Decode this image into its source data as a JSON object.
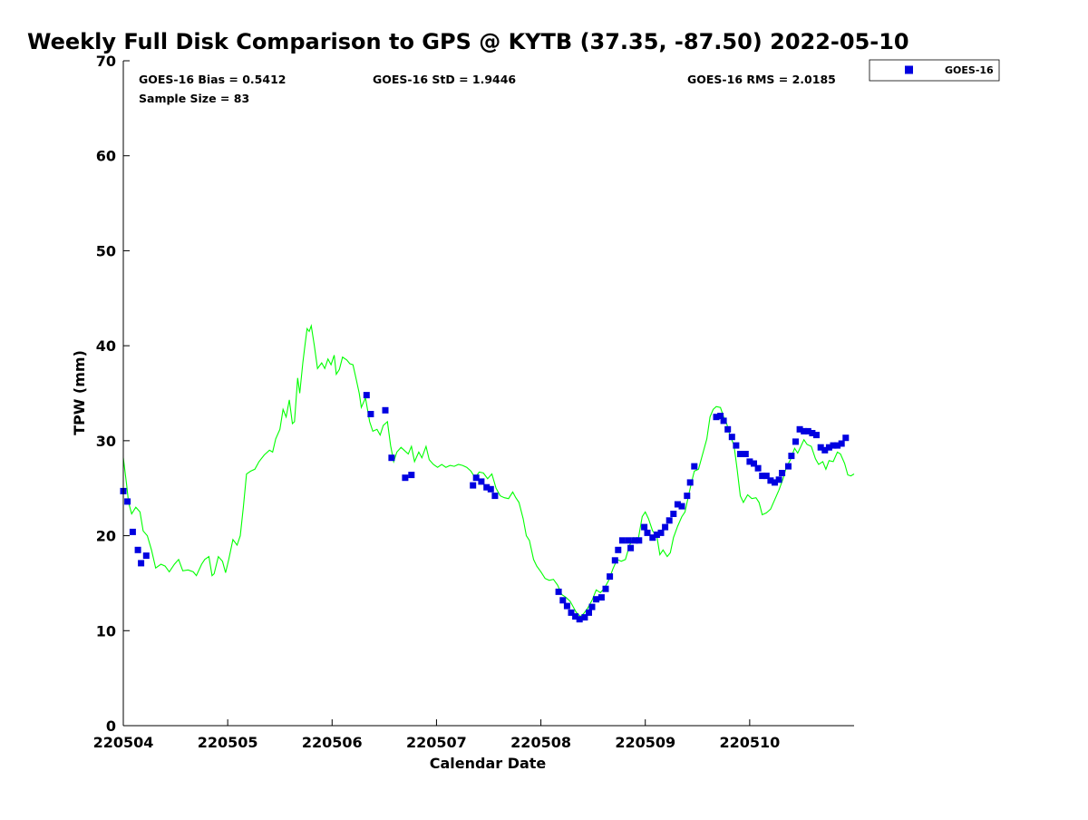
{
  "chart_data": {
    "type": "scatter",
    "title": "Weekly Full Disk Comparison to GPS @ KYTB (37.35, -87.50) 2022-05-10",
    "xlabel": "Calendar Date",
    "ylabel": "TPW (mm)",
    "ylim": [
      0,
      70
    ],
    "yticks": [
      0,
      10,
      20,
      30,
      40,
      50,
      60,
      70
    ],
    "xticks": [
      "220504",
      "220505",
      "220506",
      "220507",
      "220508",
      "220509",
      "220510"
    ],
    "xlim": [
      0,
      7
    ],
    "stats": {
      "bias": "GOES-16 Bias = 0.5412",
      "std": "GOES-16 StD = 1.9446",
      "rms": "GOES-16 RMS = 2.0185",
      "sample": "Sample Size = 83"
    },
    "legend": {
      "placement": "outside-top-right",
      "entries": [
        "GOES-16"
      ]
    },
    "colors": {
      "goes": "#0000e0",
      "gps": "#00ff00"
    },
    "series": [
      {
        "name": "GOES-16",
        "kind": "scatter",
        "points": [
          [
            0.0,
            24.7
          ],
          [
            0.04,
            23.6
          ],
          [
            0.09,
            20.4
          ],
          [
            0.14,
            18.5
          ],
          [
            0.17,
            17.1
          ],
          [
            0.22,
            17.9
          ],
          [
            2.33,
            34.8
          ],
          [
            2.37,
            32.8
          ],
          [
            2.51,
            33.2
          ],
          [
            2.57,
            28.2
          ],
          [
            2.7,
            26.1
          ],
          [
            2.76,
            26.4
          ],
          [
            3.35,
            25.3
          ],
          [
            3.38,
            26.1
          ],
          [
            3.43,
            25.7
          ],
          [
            3.48,
            25.1
          ],
          [
            3.52,
            24.9
          ],
          [
            3.56,
            24.2
          ],
          [
            4.17,
            14.1
          ],
          [
            4.21,
            13.2
          ],
          [
            4.25,
            12.6
          ],
          [
            4.29,
            11.9
          ],
          [
            4.33,
            11.5
          ],
          [
            4.37,
            11.2
          ],
          [
            4.42,
            11.4
          ],
          [
            4.46,
            11.9
          ],
          [
            4.49,
            12.5
          ],
          [
            4.53,
            13.3
          ],
          [
            4.58,
            13.5
          ],
          [
            4.62,
            14.4
          ],
          [
            4.66,
            15.7
          ],
          [
            4.71,
            17.4
          ],
          [
            4.74,
            18.5
          ],
          [
            4.78,
            19.5
          ],
          [
            4.84,
            19.5
          ],
          [
            4.86,
            18.7
          ],
          [
            4.9,
            19.5
          ],
          [
            4.94,
            19.5
          ],
          [
            4.99,
            20.9
          ],
          [
            5.02,
            20.3
          ],
          [
            5.07,
            19.8
          ],
          [
            5.11,
            20.1
          ],
          [
            5.15,
            20.3
          ],
          [
            5.19,
            20.9
          ],
          [
            5.23,
            21.6
          ],
          [
            5.27,
            22.3
          ],
          [
            5.31,
            23.3
          ],
          [
            5.35,
            23.1
          ],
          [
            5.4,
            24.2
          ],
          [
            5.43,
            25.6
          ],
          [
            5.47,
            27.3
          ],
          [
            5.68,
            32.5
          ],
          [
            5.72,
            32.6
          ],
          [
            5.75,
            32.1
          ],
          [
            5.79,
            31.2
          ],
          [
            5.83,
            30.4
          ],
          [
            5.87,
            29.5
          ],
          [
            5.91,
            28.6
          ],
          [
            5.96,
            28.6
          ],
          [
            6.0,
            27.8
          ],
          [
            6.04,
            27.6
          ],
          [
            6.08,
            27.1
          ],
          [
            6.12,
            26.3
          ],
          [
            6.16,
            26.3
          ],
          [
            6.2,
            25.8
          ],
          [
            6.24,
            25.6
          ],
          [
            6.28,
            25.9
          ],
          [
            6.31,
            26.6
          ],
          [
            6.37,
            27.3
          ],
          [
            6.4,
            28.4
          ],
          [
            6.44,
            29.9
          ],
          [
            6.48,
            31.2
          ],
          [
            6.52,
            31.0
          ],
          [
            6.56,
            31.0
          ],
          [
            6.6,
            30.8
          ],
          [
            6.64,
            30.6
          ],
          [
            6.68,
            29.3
          ],
          [
            6.72,
            29.0
          ],
          [
            6.76,
            29.3
          ],
          [
            6.8,
            29.5
          ],
          [
            6.84,
            29.5
          ],
          [
            6.88,
            29.7
          ],
          [
            6.92,
            30.3
          ]
        ]
      },
      {
        "name": "GPS",
        "kind": "line",
        "points": [
          [
            0.0,
            28.2
          ],
          [
            0.03,
            25.5
          ],
          [
            0.05,
            23.5
          ],
          [
            0.08,
            22.3
          ],
          [
            0.12,
            23.0
          ],
          [
            0.16,
            22.5
          ],
          [
            0.19,
            20.5
          ],
          [
            0.23,
            20.0
          ],
          [
            0.27,
            18.5
          ],
          [
            0.31,
            16.6
          ],
          [
            0.36,
            17.0
          ],
          [
            0.4,
            16.8
          ],
          [
            0.44,
            16.2
          ],
          [
            0.49,
            17.0
          ],
          [
            0.53,
            17.5
          ],
          [
            0.57,
            16.3
          ],
          [
            0.62,
            16.4
          ],
          [
            0.67,
            16.2
          ],
          [
            0.7,
            15.8
          ],
          [
            0.75,
            17.0
          ],
          [
            0.78,
            17.5
          ],
          [
            0.82,
            17.8
          ],
          [
            0.85,
            15.8
          ],
          [
            0.87,
            16.0
          ],
          [
            0.91,
            17.8
          ],
          [
            0.95,
            17.3
          ],
          [
            0.98,
            16.1
          ],
          [
            1.01,
            17.5
          ],
          [
            1.05,
            19.6
          ],
          [
            1.09,
            19.0
          ],
          [
            1.12,
            20.0
          ],
          [
            1.15,
            23.0
          ],
          [
            1.18,
            26.5
          ],
          [
            1.22,
            26.8
          ],
          [
            1.26,
            27.0
          ],
          [
            1.3,
            27.8
          ],
          [
            1.35,
            28.5
          ],
          [
            1.4,
            29.0
          ],
          [
            1.43,
            28.8
          ],
          [
            1.46,
            30.2
          ],
          [
            1.5,
            31.2
          ],
          [
            1.53,
            33.3
          ],
          [
            1.56,
            32.5
          ],
          [
            1.59,
            34.3
          ],
          [
            1.62,
            31.8
          ],
          [
            1.64,
            32.0
          ],
          [
            1.67,
            36.6
          ],
          [
            1.69,
            35.0
          ],
          [
            1.72,
            38.2
          ],
          [
            1.74,
            40.0
          ],
          [
            1.76,
            41.8
          ],
          [
            1.78,
            41.5
          ],
          [
            1.8,
            42.1
          ],
          [
            1.83,
            40.0
          ],
          [
            1.86,
            37.6
          ],
          [
            1.9,
            38.2
          ],
          [
            1.93,
            37.6
          ],
          [
            1.96,
            38.6
          ],
          [
            1.99,
            38.0
          ],
          [
            2.02,
            39.0
          ],
          [
            2.04,
            37.0
          ],
          [
            2.07,
            37.5
          ],
          [
            2.1,
            38.8
          ],
          [
            2.14,
            38.5
          ],
          [
            2.17,
            38.1
          ],
          [
            2.2,
            38.0
          ],
          [
            2.23,
            36.5
          ],
          [
            2.26,
            35.0
          ],
          [
            2.28,
            33.5
          ],
          [
            2.32,
            34.5
          ],
          [
            2.36,
            32.0
          ],
          [
            2.39,
            31.0
          ],
          [
            2.43,
            31.2
          ],
          [
            2.46,
            30.6
          ],
          [
            2.49,
            31.6
          ],
          [
            2.53,
            32.0
          ],
          [
            2.56,
            29.5
          ],
          [
            2.59,
            27.8
          ],
          [
            2.62,
            28.8
          ],
          [
            2.66,
            29.3
          ],
          [
            2.69,
            29.0
          ],
          [
            2.73,
            28.6
          ],
          [
            2.76,
            29.4
          ],
          [
            2.79,
            27.8
          ],
          [
            2.83,
            28.8
          ],
          [
            2.86,
            28.2
          ],
          [
            2.9,
            29.4
          ],
          [
            2.93,
            28.0
          ],
          [
            2.97,
            27.5
          ],
          [
            3.01,
            27.2
          ],
          [
            3.05,
            27.5
          ],
          [
            3.09,
            27.2
          ],
          [
            3.13,
            27.4
          ],
          [
            3.17,
            27.3
          ],
          [
            3.21,
            27.5
          ],
          [
            3.25,
            27.4
          ],
          [
            3.29,
            27.2
          ],
          [
            3.33,
            26.8
          ],
          [
            3.37,
            26.1
          ],
          [
            3.41,
            26.7
          ],
          [
            3.45,
            26.6
          ],
          [
            3.49,
            26.0
          ],
          [
            3.53,
            26.5
          ],
          [
            3.57,
            25.0
          ],
          [
            3.61,
            24.2
          ],
          [
            3.65,
            24.0
          ],
          [
            3.69,
            23.9
          ],
          [
            3.73,
            24.6
          ],
          [
            3.76,
            24.0
          ],
          [
            3.79,
            23.5
          ],
          [
            3.83,
            21.8
          ],
          [
            3.86,
            20.0
          ],
          [
            3.89,
            19.5
          ],
          [
            3.93,
            17.5
          ],
          [
            3.96,
            16.8
          ],
          [
            4.0,
            16.2
          ],
          [
            4.04,
            15.5
          ],
          [
            4.08,
            15.3
          ],
          [
            4.12,
            15.4
          ],
          [
            4.16,
            14.8
          ],
          [
            4.2,
            13.8
          ],
          [
            4.24,
            13.5
          ],
          [
            4.28,
            13.1
          ],
          [
            4.31,
            12.5
          ],
          [
            4.34,
            11.9
          ],
          [
            4.38,
            11.5
          ],
          [
            4.41,
            11.8
          ],
          [
            4.45,
            12.4
          ],
          [
            4.49,
            13.2
          ],
          [
            4.53,
            14.3
          ],
          [
            4.57,
            14.0
          ],
          [
            4.61,
            14.5
          ],
          [
            4.65,
            15.3
          ],
          [
            4.69,
            16.5
          ],
          [
            4.73,
            17.5
          ],
          [
            4.77,
            17.3
          ],
          [
            4.81,
            17.5
          ],
          [
            4.85,
            19.0
          ],
          [
            4.89,
            19.8
          ],
          [
            4.93,
            19.5
          ],
          [
            4.97,
            22.0
          ],
          [
            5.0,
            22.5
          ],
          [
            5.03,
            21.8
          ],
          [
            5.07,
            20.5
          ],
          [
            5.11,
            20.0
          ],
          [
            5.14,
            18.0
          ],
          [
            5.17,
            18.5
          ],
          [
            5.21,
            17.8
          ],
          [
            5.24,
            18.2
          ],
          [
            5.27,
            19.8
          ],
          [
            5.31,
            21.0
          ],
          [
            5.35,
            22.0
          ],
          [
            5.38,
            22.5
          ],
          [
            5.41,
            24.0
          ],
          [
            5.44,
            25.5
          ],
          [
            5.47,
            26.8
          ],
          [
            5.51,
            27.0
          ],
          [
            5.55,
            28.6
          ],
          [
            5.59,
            30.2
          ],
          [
            5.62,
            32.5
          ],
          [
            5.65,
            33.3
          ],
          [
            5.68,
            33.6
          ],
          [
            5.72,
            33.5
          ],
          [
            5.75,
            32.5
          ],
          [
            5.78,
            31.8
          ],
          [
            5.81,
            30.6
          ],
          [
            5.85,
            29.5
          ],
          [
            5.88,
            27.0
          ],
          [
            5.91,
            24.2
          ],
          [
            5.94,
            23.5
          ],
          [
            5.98,
            24.3
          ],
          [
            6.02,
            23.9
          ],
          [
            6.06,
            24.0
          ],
          [
            6.09,
            23.5
          ],
          [
            6.12,
            22.2
          ],
          [
            6.16,
            22.4
          ],
          [
            6.2,
            22.8
          ],
          [
            6.24,
            23.8
          ],
          [
            6.28,
            24.8
          ],
          [
            6.32,
            26.0
          ],
          [
            6.35,
            27.2
          ],
          [
            6.39,
            28.0
          ],
          [
            6.43,
            29.2
          ],
          [
            6.46,
            28.7
          ],
          [
            6.49,
            29.4
          ],
          [
            6.52,
            30.1
          ],
          [
            6.55,
            29.6
          ],
          [
            6.59,
            29.4
          ],
          [
            6.63,
            28.1
          ],
          [
            6.66,
            27.5
          ],
          [
            6.7,
            27.8
          ],
          [
            6.73,
            27.0
          ],
          [
            6.76,
            27.9
          ],
          [
            6.8,
            27.8
          ],
          [
            6.84,
            28.8
          ],
          [
            6.87,
            28.6
          ],
          [
            6.91,
            27.6
          ],
          [
            6.94,
            26.4
          ],
          [
            6.97,
            26.3
          ],
          [
            7.0,
            26.5
          ]
        ]
      }
    ]
  }
}
